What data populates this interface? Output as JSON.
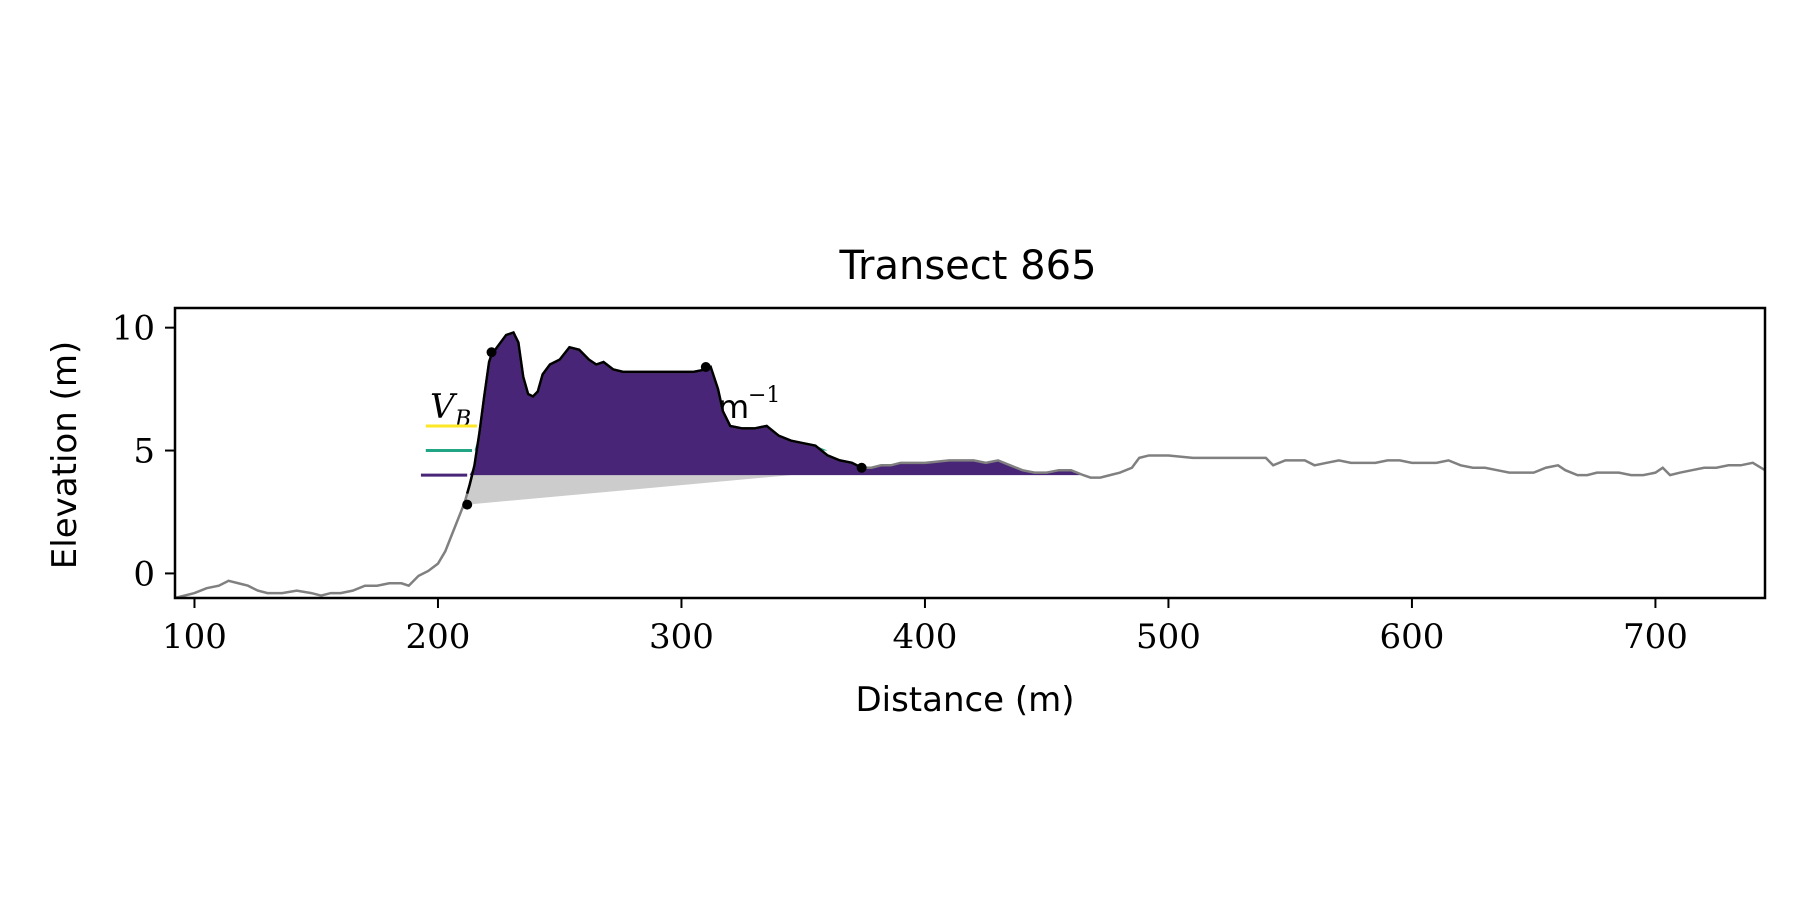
{
  "chart_data": {
    "type": "area",
    "title": "Transect 865",
    "xlabel": "Distance (m)",
    "ylabel": "Elevation (m)",
    "xlim": [
      92,
      745
    ],
    "ylim": [
      -1,
      10.8
    ],
    "xticks": [
      100,
      200,
      300,
      400,
      500,
      600,
      700
    ],
    "xtick_labels": [
      "100",
      "200",
      "300",
      "400",
      "500",
      "600",
      "700"
    ],
    "yticks": [
      0,
      5,
      10
    ],
    "ytick_labels": [
      "0",
      "5",
      "10"
    ],
    "grid": false,
    "annotation": {
      "var_text": "V",
      "var_subscript": "B",
      "unit_text": "m",
      "unit_superscript": "−1"
    },
    "profile": {
      "color": "#808080",
      "x": [
        92,
        100,
        105,
        110,
        114,
        118,
        122,
        126,
        130,
        136,
        142,
        148,
        152,
        156,
        160,
        165,
        170,
        175,
        180,
        185,
        188,
        192,
        196,
        200,
        203,
        205,
        207,
        209,
        211,
        213,
        215,
        217,
        219,
        221,
        222,
        225,
        228,
        231,
        233,
        235,
        237,
        239,
        241,
        243,
        246,
        250,
        254,
        258,
        262,
        265,
        268,
        272,
        276,
        280,
        285,
        290,
        295,
        300,
        305,
        310,
        312,
        315,
        317,
        320,
        325,
        330,
        335,
        340,
        345,
        350,
        355,
        360,
        365,
        370,
        374,
        378,
        382,
        386,
        390,
        395,
        400,
        410,
        420,
        425,
        430,
        435,
        440,
        445,
        450,
        455,
        460,
        465,
        468,
        472,
        476,
        480,
        485,
        488,
        492,
        500,
        510,
        520,
        530,
        535,
        540,
        543,
        548,
        552,
        556,
        560,
        565,
        570,
        575,
        580,
        585,
        590,
        595,
        600,
        605,
        610,
        615,
        620,
        625,
        630,
        635,
        640,
        645,
        650,
        655,
        660,
        663,
        668,
        672,
        676,
        680,
        685,
        690,
        695,
        700,
        703,
        706,
        710,
        715,
        720,
        725,
        730,
        735,
        740,
        745
      ],
      "y": [
        -1.0,
        -0.8,
        -0.6,
        -0.5,
        -0.3,
        -0.4,
        -0.5,
        -0.7,
        -0.8,
        -0.8,
        -0.7,
        -0.8,
        -0.9,
        -0.8,
        -0.8,
        -0.7,
        -0.5,
        -0.5,
        -0.4,
        -0.4,
        -0.5,
        -0.1,
        0.1,
        0.4,
        0.9,
        1.4,
        1.9,
        2.4,
        2.9,
        3.6,
        4.4,
        5.7,
        7.2,
        8.6,
        8.9,
        9.3,
        9.7,
        9.8,
        9.4,
        8.0,
        7.3,
        7.2,
        7.4,
        8.1,
        8.5,
        8.7,
        9.2,
        9.1,
        8.7,
        8.5,
        8.6,
        8.3,
        8.2,
        8.2,
        8.2,
        8.2,
        8.2,
        8.2,
        8.2,
        8.3,
        8.4,
        7.5,
        6.6,
        6.0,
        5.9,
        5.9,
        6.0,
        5.6,
        5.4,
        5.3,
        5.2,
        4.8,
        4.6,
        4.5,
        4.3,
        4.3,
        4.4,
        4.4,
        4.5,
        4.5,
        4.5,
        4.6,
        4.6,
        4.5,
        4.6,
        4.4,
        4.2,
        4.1,
        4.1,
        4.2,
        4.2,
        4.0,
        3.9,
        3.9,
        4.0,
        4.1,
        4.3,
        4.7,
        4.8,
        4.8,
        4.7,
        4.7,
        4.7,
        4.7,
        4.7,
        4.4,
        4.6,
        4.6,
        4.6,
        4.4,
        4.5,
        4.6,
        4.5,
        4.5,
        4.5,
        4.6,
        4.6,
        4.5,
        4.5,
        4.5,
        4.6,
        4.4,
        4.3,
        4.3,
        4.2,
        4.1,
        4.1,
        4.1,
        4.3,
        4.4,
        4.2,
        4.0,
        4.0,
        4.1,
        4.1,
        4.1,
        4.0,
        4.0,
        4.1,
        4.3,
        4.0,
        4.1,
        4.2,
        4.3,
        4.3,
        4.4,
        4.4,
        4.5,
        4.2
      ],
      "baseline": {
        "x": [
          212,
          345
        ],
        "y": [
          2.8,
          4.0
        ]
      }
    },
    "dune": {
      "color": "#000000",
      "x_start": 212,
      "x_end": 374,
      "key_points": {
        "x": [
          212,
          222,
          310,
          374
        ],
        "y": [
          2.8,
          9.0,
          8.4,
          4.3
        ]
      }
    },
    "series": [
      {
        "color": "#fde725",
        "level": 6.0,
        "ref_x": [
          195,
          216
        ],
        "fill_x": [
          216,
          313
        ]
      },
      {
        "color": "#21a585",
        "level": 5.0,
        "ref_x": [
          195,
          214
        ],
        "fill_x": [
          214,
          368
        ]
      },
      {
        "color": "#482576",
        "level": 4.0,
        "ref_x": [
          193,
          212
        ],
        "fill_x": [
          212,
          470
        ]
      }
    ]
  }
}
